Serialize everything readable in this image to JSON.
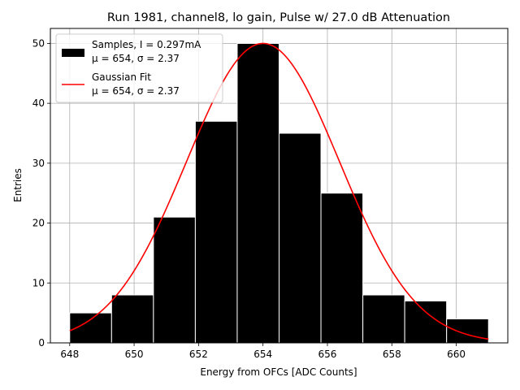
{
  "chart_data": {
    "type": "bar",
    "title": "Run 1981, channel8, lo gain, Pulse w/ 27.0 dB Attenuation",
    "xlabel": "Energy from OFCs [ADC Counts]",
    "ylabel": "Entries",
    "xlim": [
      647.4,
      661.6
    ],
    "ylim": [
      0,
      52.5
    ],
    "xticks": [
      648,
      650,
      652,
      654,
      656,
      658,
      660
    ],
    "yticks": [
      0,
      10,
      20,
      30,
      40,
      50
    ],
    "grid": true,
    "legend_position": "top-left",
    "histogram": {
      "name": "Samples, I = 0.297mA",
      "stats": "μ = 654, σ = 2.37",
      "color": "#000000",
      "edge_color": "#ffffff",
      "bin_edges": [
        648.0,
        649.3,
        650.6,
        651.9,
        653.2,
        654.5,
        655.8,
        657.1,
        658.4,
        659.7,
        661.0
      ],
      "counts": [
        5,
        8,
        21,
        37,
        50,
        35,
        25,
        8,
        7,
        4
      ]
    },
    "fit": {
      "name": "Gaussian Fit",
      "stats": "μ = 654, σ = 2.37",
      "color": "#ff0000",
      "amplitude": 50,
      "mu": 654,
      "sigma": 2.37,
      "x_range": [
        648.0,
        661.0
      ]
    }
  }
}
